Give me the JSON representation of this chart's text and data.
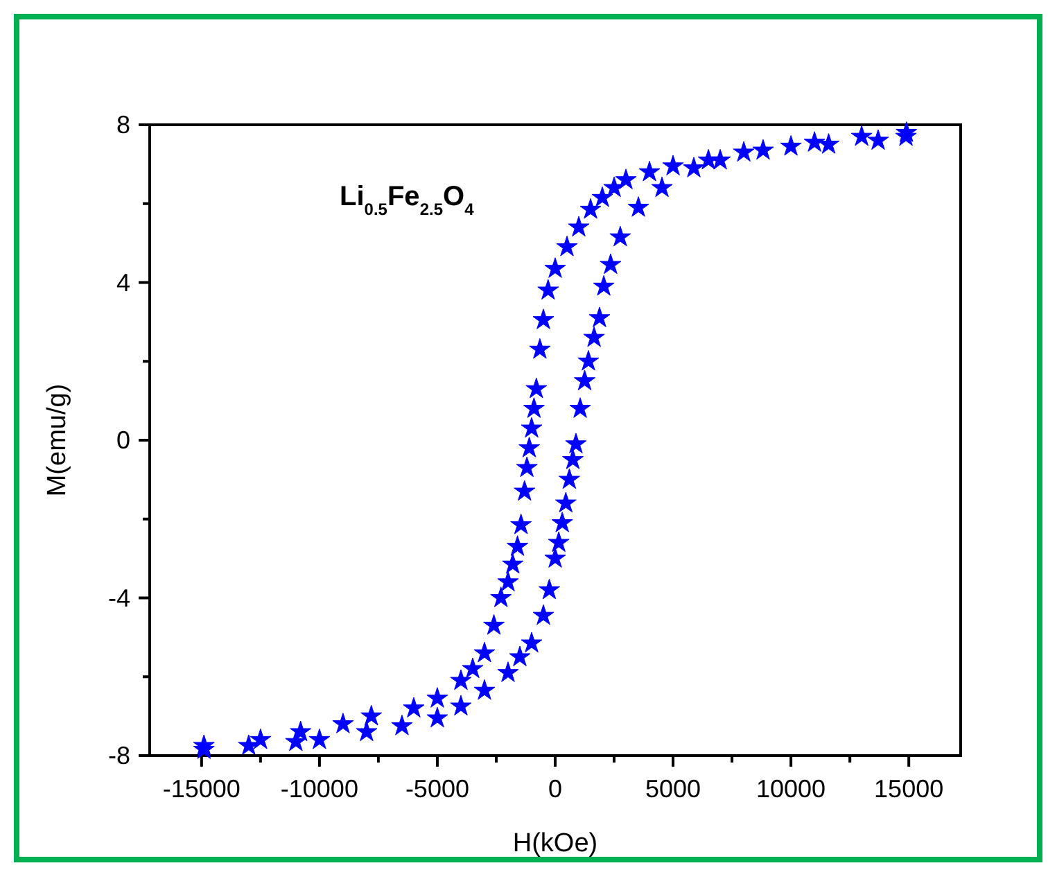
{
  "chart_data": {
    "type": "scatter",
    "xlabel": "H(kOe)",
    "ylabel": "M(emu/g)",
    "annotations": [
      "Li$_{0.5}$Fe$_{2.5}$O$_{4}$"
    ],
    "xlim": [
      -17200,
      17200
    ],
    "ylim": [
      -8,
      8
    ],
    "xticks": [
      -15000,
      {
        "value": -12500,
        "label": null
      },
      -10000,
      {
        "value": -7500,
        "label": null
      },
      -5000,
      {
        "value": -2500,
        "label": null
      },
      0,
      {
        "value": 2500,
        "label": null
      },
      5000,
      {
        "value": 7500,
        "label": null
      },
      10000,
      {
        "value": 12500,
        "label": null
      },
      15000
    ],
    "yticks": [
      -8,
      {
        "value": -6,
        "label": null
      },
      -4,
      {
        "value": -2,
        "label": null
      },
      0,
      {
        "value": 2,
        "label": null
      },
      4,
      {
        "value": 6,
        "label": null
      },
      8
    ],
    "marker": "star",
    "series": [
      {
        "color": "#0000ff",
        "x": [
          14900,
          13000,
          11000,
          10000,
          8000,
          6500,
          5000,
          4000,
          3000,
          2500,
          2000,
          1500,
          1000,
          500,
          0,
          -300,
          -500,
          -650,
          -800,
          -900,
          -1000,
          -1100,
          -1200,
          -1300,
          -1450,
          -1600,
          -1800,
          -2000,
          -2300,
          -2600,
          -3000,
          -3500,
          -4000,
          -5000,
          -6000,
          -7800,
          -9000,
          -10800,
          -12500,
          -14900
        ],
        "values": [
          7.8,
          7.7,
          7.55,
          7.45,
          7.3,
          7.1,
          6.95,
          6.8,
          6.6,
          6.4,
          6.15,
          5.85,
          5.4,
          4.9,
          4.35,
          3.8,
          3.05,
          2.3,
          1.3,
          0.8,
          0.3,
          -0.2,
          -0.7,
          -1.3,
          -2.15,
          -2.7,
          -3.15,
          -3.6,
          -4.0,
          -4.7,
          -5.4,
          -5.8,
          -6.1,
          -6.55,
          -6.8,
          -7.0,
          -7.2,
          -7.4,
          -7.6,
          -7.75
        ]
      },
      {
        "color": "#0000ff",
        "x": [
          -14900,
          -13000,
          -11000,
          -10000,
          -8000,
          -6500,
          -5000,
          -4000,
          -3000,
          -2000,
          -1500,
          -1000,
          -500,
          -250,
          0,
          150,
          300,
          450,
          600,
          750,
          880,
          1060,
          1250,
          1410,
          1650,
          1880,
          2060,
          2350,
          2760,
          3530,
          4530,
          5880,
          7000,
          8820,
          11600,
          13700,
          14880
        ],
        "values": [
          -7.85,
          -7.75,
          -7.65,
          -7.6,
          -7.4,
          -7.25,
          -7.05,
          -6.75,
          -6.35,
          -5.9,
          -5.5,
          -5.15,
          -4.45,
          -3.8,
          -3.0,
          -2.6,
          -2.1,
          -1.6,
          -1.0,
          -0.5,
          -0.1,
          0.8,
          1.5,
          2.0,
          2.6,
          3.1,
          3.9,
          4.45,
          5.15,
          5.9,
          6.4,
          6.9,
          7.1,
          7.35,
          7.5,
          7.6,
          7.7
        ]
      }
    ]
  }
}
